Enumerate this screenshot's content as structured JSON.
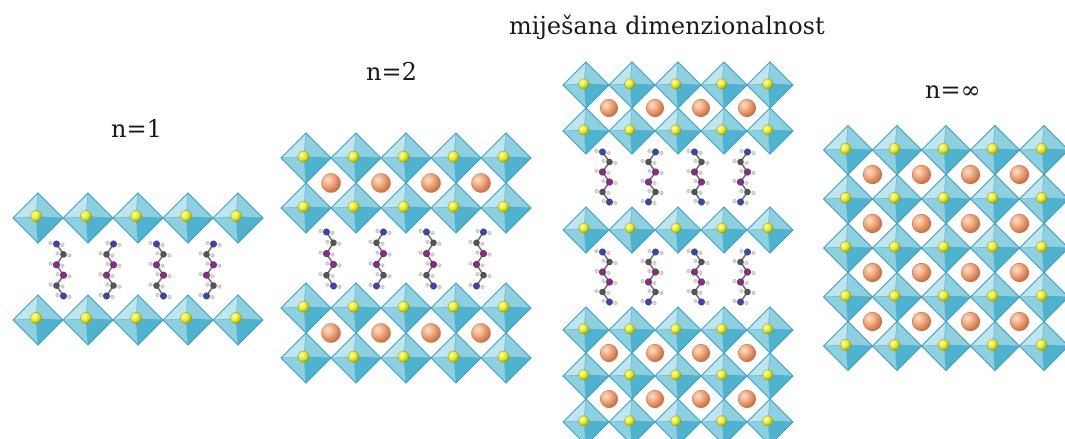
{
  "labels": {
    "n1": "n=1",
    "n2": "n=2",
    "mixed": "miješana dimenzionalnost",
    "n_inf": "n=∞"
  },
  "colors": {
    "octahedron_light": "#bfe6ef",
    "octahedron_mid": "#8fd0e0",
    "octahedron_dark": "#4fb3cf",
    "octahedron_edge": "#3a9ec0",
    "halide_atom": "#e2ea2a",
    "cation_atom": "#e89a6e",
    "carbon_atom": "#555555",
    "nitrogen_atom": "#3a48a8",
    "iodine_atom": "#8a2a8a",
    "hydrogen_atom": "#d8d8d8"
  }
}
